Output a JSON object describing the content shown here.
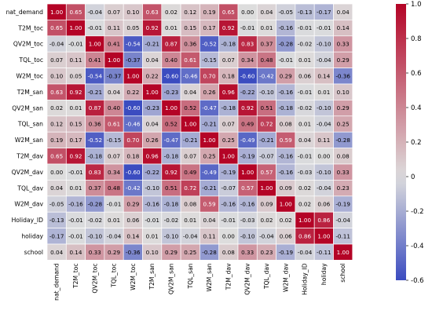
{
  "chart_data": {
    "type": "heatmap",
    "title": "",
    "row_labels": [
      "nat_demand",
      "T2M_toc",
      "QV2M_toc",
      "TQL_toc",
      "W2M_toc",
      "T2M_san",
      "QV2M_san",
      "TQL_san",
      "W2M_san",
      "T2M_dav",
      "QV2M_dav",
      "TQL_dav",
      "W2M_dav",
      "Holiday_ID",
      "holiday",
      "school"
    ],
    "col_labels": [
      "nat_demand",
      "T2M_toc",
      "QV2M_toc",
      "TQL_toc",
      "W2M_toc",
      "T2M_san",
      "QV2M_san",
      "TQL_san",
      "W2M_san",
      "T2M_dav",
      "QV2M_dav",
      "TQL_dav",
      "W2M_dav",
      "Holiday_ID",
      "holiday",
      "school"
    ],
    "values": [
      [
        1.0,
        0.65,
        -0.04,
        0.07,
        0.1,
        0.63,
        0.02,
        0.12,
        0.19,
        0.65,
        -0.0,
        0.04,
        -0.05,
        -0.13,
        -0.17,
        0.04
      ],
      [
        0.65,
        1.0,
        -0.01,
        0.11,
        0.05,
        0.92,
        0.01,
        0.15,
        0.17,
        0.92,
        -0.01,
        0.01,
        -0.16,
        -0.01,
        -0.01,
        0.14
      ],
      [
        -0.04,
        -0.01,
        1.0,
        0.41,
        -0.54,
        -0.21,
        0.87,
        0.36,
        -0.52,
        -0.18,
        0.83,
        0.37,
        -0.28,
        -0.02,
        -0.1,
        0.33
      ],
      [
        0.07,
        0.11,
        0.41,
        1.0,
        -0.37,
        0.04,
        0.4,
        0.61,
        -0.15,
        0.07,
        0.34,
        0.48,
        -0.01,
        0.01,
        -0.04,
        0.29
      ],
      [
        0.1,
        0.05,
        -0.54,
        -0.37,
        1.0,
        0.22,
        -0.6,
        -0.46,
        0.7,
        0.18,
        -0.6,
        -0.42,
        0.29,
        0.06,
        0.14,
        -0.36
      ],
      [
        0.63,
        0.92,
        -0.21,
        0.04,
        0.22,
        1.0,
        -0.23,
        0.04,
        0.26,
        0.96,
        -0.22,
        -0.1,
        -0.16,
        -0.01,
        0.01,
        0.1
      ],
      [
        0.02,
        0.01,
        0.87,
        0.4,
        -0.6,
        -0.23,
        1.0,
        0.52,
        -0.47,
        -0.18,
        0.92,
        0.51,
        -0.18,
        -0.02,
        -0.1,
        0.29
      ],
      [
        0.12,
        0.15,
        0.36,
        0.61,
        -0.46,
        0.04,
        0.52,
        1.0,
        -0.21,
        0.07,
        0.49,
        0.72,
        0.08,
        0.01,
        -0.04,
        0.25
      ],
      [
        0.19,
        0.17,
        -0.52,
        -0.15,
        0.7,
        0.26,
        -0.47,
        -0.21,
        1.0,
        0.25,
        -0.49,
        -0.21,
        0.59,
        0.04,
        0.11,
        -0.28
      ],
      [
        0.65,
        0.92,
        -0.18,
        0.07,
        0.18,
        0.96,
        -0.18,
        0.07,
        0.25,
        1.0,
        -0.19,
        -0.07,
        -0.16,
        -0.01,
        0.0,
        0.08
      ],
      [
        -0.0,
        -0.01,
        0.83,
        0.34,
        -0.6,
        -0.22,
        0.92,
        0.49,
        -0.49,
        -0.19,
        1.0,
        0.57,
        -0.16,
        -0.03,
        -0.1,
        0.33
      ],
      [
        0.04,
        0.01,
        0.37,
        0.48,
        -0.42,
        -0.1,
        0.51,
        0.72,
        -0.21,
        -0.07,
        0.57,
        1.0,
        0.09,
        0.02,
        -0.04,
        0.23
      ],
      [
        -0.05,
        -0.16,
        -0.28,
        -0.01,
        0.29,
        -0.16,
        -0.18,
        0.08,
        0.59,
        -0.16,
        -0.16,
        0.09,
        1.0,
        0.02,
        0.06,
        -0.19
      ],
      [
        -0.13,
        -0.01,
        -0.02,
        0.01,
        0.06,
        -0.01,
        -0.02,
        0.01,
        0.04,
        -0.01,
        -0.03,
        0.02,
        0.02,
        1.0,
        0.86,
        -0.04
      ],
      [
        -0.17,
        -0.01,
        -0.1,
        -0.04,
        0.14,
        0.01,
        -0.1,
        -0.04,
        0.11,
        0.0,
        -0.1,
        -0.04,
        0.06,
        0.86,
        1.0,
        -0.11
      ],
      [
        0.04,
        0.14,
        0.33,
        0.29,
        -0.36,
        0.1,
        0.29,
        0.25,
        -0.28,
        0.08,
        0.33,
        0.23,
        -0.19,
        -0.04,
        -0.11,
        1.0
      ]
    ],
    "value_format": "2 decimals",
    "color_scale": {
      "min": -0.6,
      "max": 1.0,
      "low_color": "#3b4cc0",
      "mid_color": "#dddddd",
      "high_color": "#b40426"
    },
    "colorbar_ticks": [
      1.0,
      0.8,
      0.6,
      0.4,
      0.2,
      0.0,
      -0.2,
      -0.4,
      -0.6
    ],
    "colorbar_tick_labels": [
      "1.0",
      "0.8",
      "0.6",
      "0.4",
      "0.2",
      "0",
      "-0.2",
      "-0.4",
      "-0.6"
    ],
    "legend_placement": "right",
    "grid": true
  }
}
